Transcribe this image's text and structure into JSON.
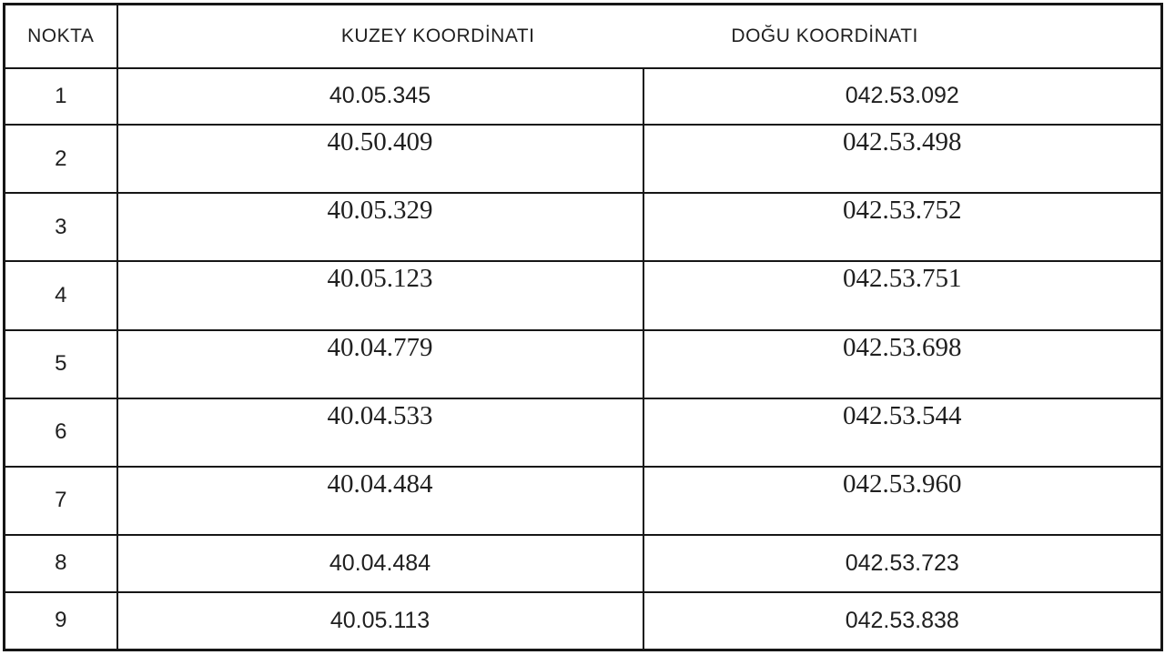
{
  "table": {
    "headers": {
      "nokta": "NOKTA",
      "kuzey": "KUZEY KOORDİNATI",
      "dogu": "DOĞU KOORDİNATI"
    },
    "rows": [
      {
        "nokta": "1",
        "kuzey": "40.05.345",
        "dogu": "042.53.092",
        "serif": false
      },
      {
        "nokta": "2",
        "kuzey": "40.50.409",
        "dogu": "042.53.498",
        "serif": true
      },
      {
        "nokta": "3",
        "kuzey": "40.05.329",
        "dogu": "042.53.752",
        "serif": true
      },
      {
        "nokta": "4",
        "kuzey": "40.05.123",
        "dogu": "042.53.751",
        "serif": true
      },
      {
        "nokta": "5",
        "kuzey": "40.04.779",
        "dogu": "042.53.698",
        "serif": true
      },
      {
        "nokta": "6",
        "kuzey": "40.04.533",
        "dogu": "042.53.544",
        "serif": true
      },
      {
        "nokta": "7",
        "kuzey": "40.04.484",
        "dogu": "042.53.960",
        "serif": true
      },
      {
        "nokta": "8",
        "kuzey": "40.04.484",
        "dogu": "042.53.723",
        "serif": false
      },
      {
        "nokta": "9",
        "kuzey": "40.05.113",
        "dogu": "042.53.838",
        "serif": false
      }
    ],
    "text_color": "#1f1f1f",
    "border_color": "#161616"
  }
}
